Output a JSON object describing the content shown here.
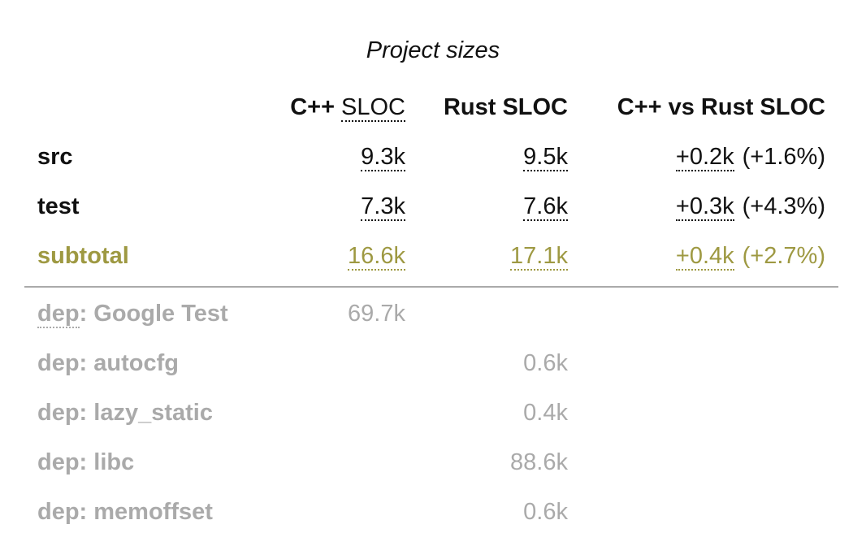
{
  "caption": "Project sizes",
  "header": {
    "cpp": {
      "prefix": "C++",
      "abbr": "SLOC"
    },
    "rust": "Rust SLOC",
    "diff": "C++ vs Rust SLOC"
  },
  "rows": [
    {
      "label": "src",
      "cpp": "9.3k",
      "rust": "9.5k",
      "delta": "+0.2k",
      "pct": "(+1.6%)"
    },
    {
      "label": "test",
      "cpp": "7.3k",
      "rust": "7.6k",
      "delta": "+0.3k",
      "pct": "(+4.3%)"
    },
    {
      "label": "subtotal",
      "cpp": "16.6k",
      "rust": "17.1k",
      "delta": "+0.4k",
      "pct": "(+2.7%)"
    }
  ],
  "deps": [
    {
      "label": [
        "dep",
        ": Google Test"
      ],
      "cpp": "69.7k",
      "rust": null
    },
    {
      "label": [
        "dep: autocfg"
      ],
      "cpp": null,
      "rust": "0.6k"
    },
    {
      "label": [
        "dep: lazy_static"
      ],
      "cpp": null,
      "rust": "0.4k"
    },
    {
      "label": [
        "dep: libc"
      ],
      "cpp": null,
      "rust": "88.6k"
    },
    {
      "label": [
        "dep: memoffset"
      ],
      "cpp": null,
      "rust": "0.6k"
    }
  ]
}
